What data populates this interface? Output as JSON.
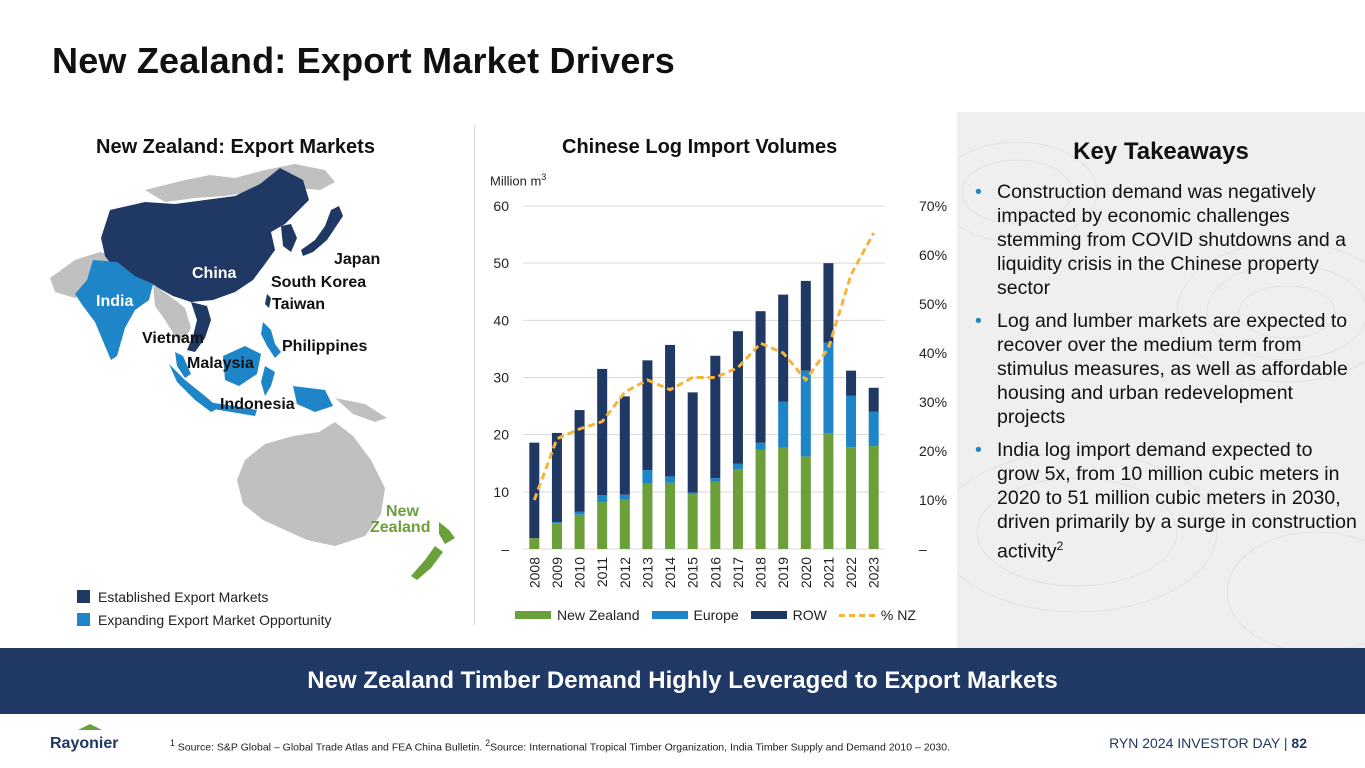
{
  "page_title": "New Zealand: Export Market Drivers",
  "map_panel": {
    "title": "New Zealand: Export Markets",
    "labels": {
      "china": "China",
      "india": "India",
      "japan": "Japan",
      "south_korea": "South Korea",
      "taiwan": "Taiwan",
      "vietnam": "Vietnam",
      "philippines": "Philippines",
      "malaysia": "Malaysia",
      "indonesia": "Indonesia",
      "new": "New",
      "zealand": "Zealand"
    },
    "legend": [
      {
        "label": "Established Export Markets",
        "color": "#1f3864"
      },
      {
        "label": "Expanding Export Market Opportunity",
        "color": "#1e86c8"
      }
    ]
  },
  "chart_data": {
    "type": "bar",
    "stacked": true,
    "title": "Chinese Log Import Volumes",
    "ylabel": "Million m",
    "ylabel_sup": "3",
    "ylim": [
      0,
      60
    ],
    "y_ticks": [
      "–",
      "10",
      "20",
      "30",
      "40",
      "50",
      "60"
    ],
    "y2lim": [
      0,
      70
    ],
    "y2_ticks": [
      "–",
      "10%",
      "20%",
      "30%",
      "40%",
      "50%",
      "60%",
      "70%"
    ],
    "categories": [
      "2008",
      "2009",
      "2010",
      "2011",
      "2012",
      "2013",
      "2014",
      "2015",
      "2016",
      "2017",
      "2018",
      "2019",
      "2020",
      "2021",
      "2022",
      "2023"
    ],
    "series": [
      {
        "name": "New Zealand",
        "color": "#6a9f3a",
        "values": [
          1.9,
          4.5,
          6.0,
          8.2,
          8.6,
          11.4,
          11.6,
          9.6,
          11.8,
          14.0,
          17.4,
          17.7,
          16.2,
          20.3,
          17.8,
          18.0
        ]
      },
      {
        "name": "Europe",
        "color": "#1e86c8",
        "values": [
          0.0,
          0.2,
          0.5,
          1.2,
          0.9,
          2.4,
          1.1,
          0.3,
          0.6,
          0.9,
          1.2,
          8.1,
          15.0,
          15.8,
          9.0,
          6.0
        ]
      },
      {
        "name": "ROW",
        "color": "#1f3864",
        "values": [
          16.7,
          15.6,
          17.8,
          22.1,
          17.2,
          19.2,
          23.0,
          17.5,
          21.4,
          23.2,
          23.0,
          18.7,
          15.7,
          13.9,
          4.4,
          4.2
        ]
      },
      {
        "name": "% NZ",
        "color": "#f5b43c",
        "type": "line",
        "axis": "secondary",
        "values": [
          10,
          22.5,
          24.5,
          26,
          32,
          34.5,
          32.5,
          35,
          35,
          37,
          42,
          40,
          34.5,
          41,
          56,
          64.5
        ]
      }
    ],
    "grid": true,
    "legend_position": "bottom"
  },
  "takeaways": {
    "title": "Key Takeaways",
    "items": [
      "Construction demand was negatively impacted by economic challenges stemming from COVID shutdowns and a liquidity crisis in the Chinese property sector",
      "Log and lumber markets are expected to recover over the medium term from stimulus measures, as well as affordable housing and urban redevelopment projects",
      "India log import demand expected to grow 5x, from 10 million cubic meters in 2020 to 51 million cubic meters in 2030, driven primarily by a surge in construction activity"
    ],
    "last_item_sup": "2"
  },
  "banner": "New Zealand Timber Demand Highly Leveraged to Export Markets",
  "footer": {
    "logo_text": "Rayonier",
    "footnote_1_mark": "1",
    "footnote_1": "Source: S&P Global – Global Trade Atlas and FEA China Bulletin.",
    "footnote_2_mark": "2",
    "footnote_2": "Source: International Tropical Timber Organization, India Timber Supply and Demand 2010 – 2030.",
    "event": "RYN 2024 INVESTOR DAY",
    "separator": "|",
    "page_number": "82"
  },
  "colors": {
    "established": "#1f3864",
    "expanding": "#1e86c8",
    "other_land": "#c0c0c0",
    "new_zealand": "#6a9f3a"
  }
}
